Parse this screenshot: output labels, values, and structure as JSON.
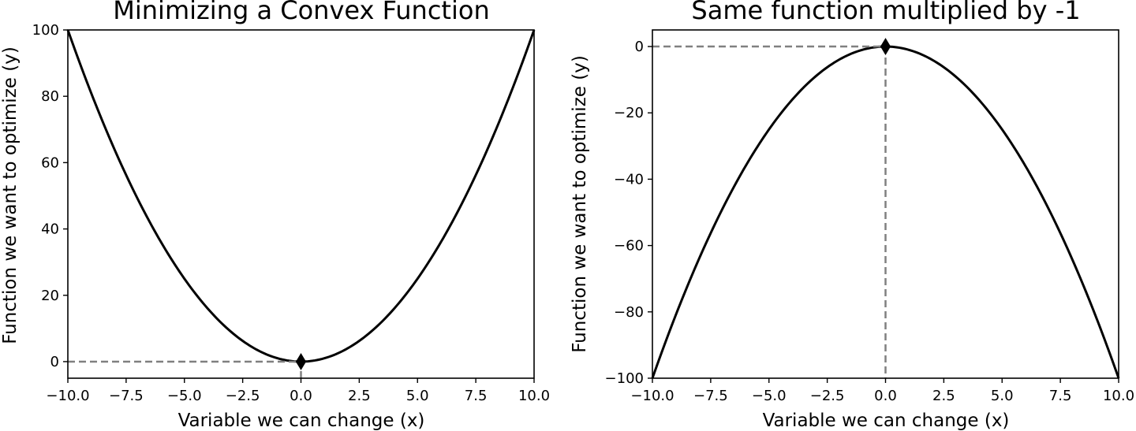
{
  "chart_data": [
    {
      "type": "line",
      "title": "Minimizing a Convex Function",
      "xlabel": "Variable we can change (x)",
      "ylabel": "Function we want to optimize (y)",
      "xlim": [
        -10,
        10
      ],
      "ylim": [
        -5,
        100
      ],
      "xticks": [
        -10.0,
        -7.5,
        -5.0,
        -2.5,
        0.0,
        2.5,
        5.0,
        7.5,
        10.0
      ],
      "xtick_labels": [
        "−10.0",
        "−7.5",
        "−5.0",
        "−2.5",
        "0.0",
        "2.5",
        "5.0",
        "7.5",
        "10.0"
      ],
      "yticks": [
        0,
        20,
        40,
        60,
        80,
        100
      ],
      "ytick_labels": [
        "0",
        "20",
        "40",
        "60",
        "80",
        "100"
      ],
      "series": [
        {
          "color": "#000000",
          "x": [
            -10,
            -9,
            -8,
            -7,
            -6,
            -5,
            -4,
            -3,
            -2,
            -1,
            0,
            1,
            2,
            3,
            4,
            5,
            6,
            7,
            8,
            9,
            10
          ],
          "y": [
            100,
            81,
            64,
            49,
            36,
            25,
            16,
            9,
            4,
            1,
            0,
            1,
            4,
            9,
            16,
            25,
            36,
            49,
            64,
            81,
            100
          ]
        }
      ],
      "optimum": {
        "x": 0,
        "y": 0,
        "marker": "diamond",
        "guide_color": "#808080"
      },
      "grid": false
    },
    {
      "type": "line",
      "title": "Same function multiplied by -1",
      "xlabel": "Variable we can change (x)",
      "ylabel": "Function we want to optimize (y)",
      "xlim": [
        -10,
        10
      ],
      "ylim": [
        -100,
        5
      ],
      "xticks": [
        -10.0,
        -7.5,
        -5.0,
        -2.5,
        0.0,
        2.5,
        5.0,
        7.5,
        10.0
      ],
      "xtick_labels": [
        "−10.0",
        "−7.5",
        "−5.0",
        "−2.5",
        "0.0",
        "2.5",
        "5.0",
        "7.5",
        "10.0"
      ],
      "yticks": [
        0,
        -20,
        -40,
        -60,
        -80,
        -100
      ],
      "ytick_labels": [
        "0",
        "−20",
        "−40",
        "−60",
        "−80",
        "−100"
      ],
      "series": [
        {
          "color": "#000000",
          "x": [
            -10,
            -9,
            -8,
            -7,
            -6,
            -5,
            -4,
            -3,
            -2,
            -1,
            0,
            1,
            2,
            3,
            4,
            5,
            6,
            7,
            8,
            9,
            10
          ],
          "y": [
            -100,
            -81,
            -64,
            -49,
            -36,
            -25,
            -16,
            -9,
            -4,
            -1,
            0,
            -1,
            -4,
            -9,
            -16,
            -25,
            -36,
            -49,
            -64,
            -81,
            -100
          ]
        }
      ],
      "optimum": {
        "x": 0,
        "y": 0,
        "marker": "diamond",
        "guide_color": "#808080"
      },
      "grid": false
    }
  ]
}
